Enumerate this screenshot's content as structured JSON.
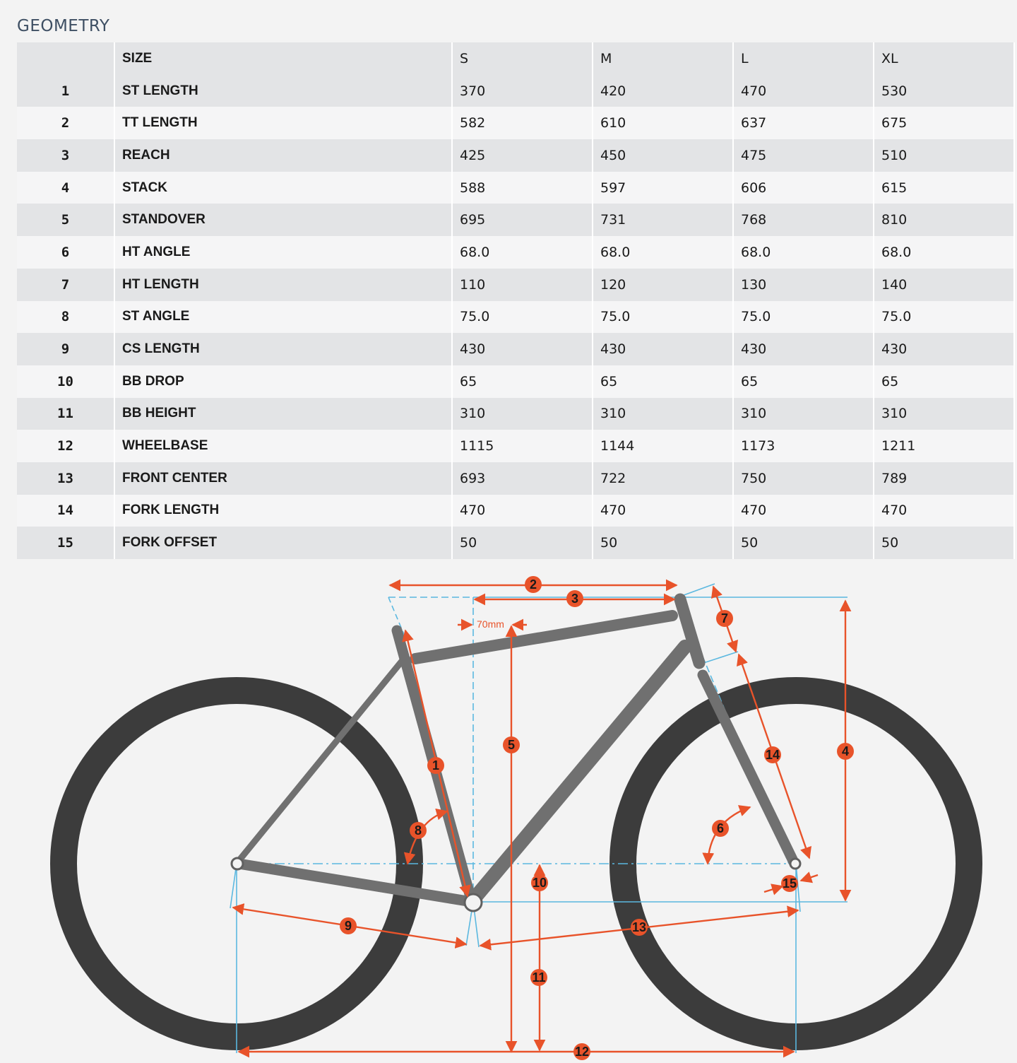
{
  "title": "GEOMETRY",
  "table": {
    "headers": [
      "",
      "SIZE",
      "S",
      "M",
      "L",
      "XL"
    ],
    "rows": [
      {
        "num": "1",
        "name": "ST LENGTH",
        "values": [
          "370",
          "420",
          "470",
          "530"
        ]
      },
      {
        "num": "2",
        "name": "TT LENGTH",
        "values": [
          "582",
          "610",
          "637",
          "675"
        ]
      },
      {
        "num": "3",
        "name": "REACH",
        "values": [
          "425",
          "450",
          "475",
          "510"
        ]
      },
      {
        "num": "4",
        "name": "STACK",
        "values": [
          "588",
          "597",
          "606",
          "615"
        ]
      },
      {
        "num": "5",
        "name": "STANDOVER",
        "values": [
          "695",
          "731",
          "768",
          "810"
        ]
      },
      {
        "num": "6",
        "name": "HT ANGLE",
        "values": [
          "68.0",
          "68.0",
          "68.0",
          "68.0"
        ]
      },
      {
        "num": "7",
        "name": "HT LENGTH",
        "values": [
          "110",
          "120",
          "130",
          "140"
        ]
      },
      {
        "num": "8",
        "name": "ST ANGLE",
        "values": [
          "75.0",
          "75.0",
          "75.0",
          "75.0"
        ]
      },
      {
        "num": "9",
        "name": "CS LENGTH",
        "values": [
          "430",
          "430",
          "430",
          "430"
        ]
      },
      {
        "num": "10",
        "name": "BB DROP",
        "values": [
          "65",
          "65",
          "65",
          "65"
        ]
      },
      {
        "num": "11",
        "name": "BB HEIGHT",
        "values": [
          "310",
          "310",
          "310",
          "310"
        ]
      },
      {
        "num": "12",
        "name": "WHEELBASE",
        "values": [
          "1115",
          "1144",
          "1173",
          "1211"
        ]
      },
      {
        "num": "13",
        "name": "FRONT CENTER",
        "values": [
          "693",
          "722",
          "750",
          "789"
        ]
      },
      {
        "num": "14",
        "name": "FORK LENGTH",
        "values": [
          "470",
          "470",
          "470",
          "470"
        ]
      },
      {
        "num": "15",
        "name": "FORK OFFSET",
        "values": [
          "50",
          "50",
          "50",
          "50"
        ]
      }
    ]
  },
  "diagram": {
    "offset_label": "70mm",
    "badges": [
      "1",
      "2",
      "3",
      "4",
      "5",
      "6",
      "7",
      "8",
      "9",
      "10",
      "11",
      "12",
      "13",
      "14",
      "15"
    ],
    "colors": {
      "dimension": "#e8532a",
      "guide": "#5bb8e0",
      "frame": "#707070",
      "tire": "#3c3c3c",
      "badge": "#e8532a"
    }
  }
}
